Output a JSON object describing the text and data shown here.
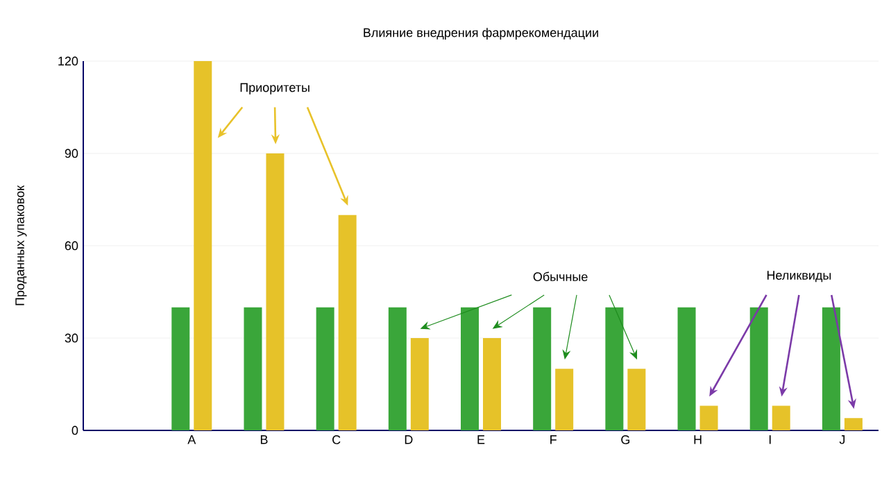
{
  "chart_data": {
    "type": "bar",
    "title": "Влияние внедрения фармрекомендации",
    "ylabel": "Проданных упаковок",
    "categories": [
      null,
      "A",
      "B",
      "C",
      "D",
      "E",
      "F",
      "G",
      "H",
      "I",
      "J"
    ],
    "series": [
      {
        "color": "#3aa63a",
        "values": [
          null,
          40,
          40,
          40,
          40,
          40,
          40,
          40,
          40,
          40,
          40
        ]
      },
      {
        "color": "#e6c229",
        "values": [
          null,
          120,
          90,
          70,
          30,
          30,
          20,
          20,
          8,
          8,
          4
        ]
      }
    ],
    "ylim": [
      0,
      120
    ],
    "yticks": [
      0,
      30,
      60,
      90,
      120
    ],
    "grid": "y",
    "annotations": [
      "Приоритеты",
      "Обычные",
      "Неликвиды"
    ]
  }
}
